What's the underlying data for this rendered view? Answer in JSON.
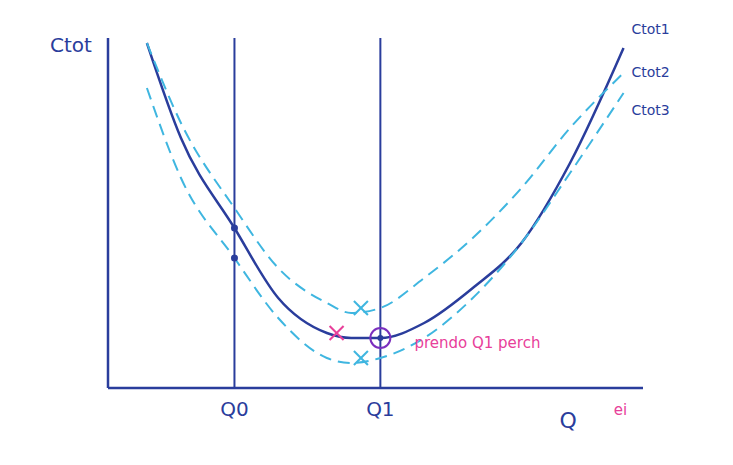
{
  "chart_data": {
    "type": "line",
    "x_label": "Q",
    "y_label": "Ctot",
    "x": [
      0.8,
      1.5,
      2.6,
      3.5,
      4.5,
      5.0,
      5.6,
      6.5,
      7.5,
      8.5,
      9.5,
      10.6
    ],
    "series": [
      {
        "name": "Ctot1",
        "color": "#2a3d9c",
        "line_style": "solid",
        "values": [
          6.9,
          5.0,
          3.2,
          1.8,
          1.1,
          1.0,
          1.0,
          1.3,
          2.0,
          2.9,
          4.5,
          6.8
        ]
      },
      {
        "name": "Ctot2",
        "color": "#3fb6e0",
        "line_style": "dashed",
        "values": [
          6.9,
          5.3,
          3.6,
          2.4,
          1.7,
          1.5,
          1.6,
          2.2,
          3.0,
          4.0,
          5.2,
          6.3
        ]
      },
      {
        "name": "Ctot3",
        "color": "#3fb6e0",
        "line_style": "dashed",
        "values": [
          6.0,
          4.2,
          2.6,
          1.4,
          0.6,
          0.5,
          0.6,
          1.0,
          1.8,
          2.9,
          4.3,
          5.9
        ]
      }
    ],
    "xlim": [
      0,
      11
    ],
    "ylim": [
      0,
      7
    ],
    "xticks": [
      {
        "value": 2.6,
        "label": "Q0"
      },
      {
        "value": 5.6,
        "label": "Q1"
      }
    ],
    "yticks": [],
    "tick_labels": "x",
    "marks": [
      {
        "x": 2.6,
        "y": 3.2,
        "marker": "dot",
        "color": "#2a3d9c"
      },
      {
        "x": 2.6,
        "y": 2.6,
        "marker": "dot",
        "color": "#2a3d9c"
      },
      {
        "x": 4.7,
        "y": 1.1,
        "marker": "x",
        "color": "#e8409a"
      },
      {
        "x": 5.2,
        "y": 1.6,
        "marker": "x",
        "color": "#3fb6e0"
      },
      {
        "x": 5.2,
        "y": 0.6,
        "marker": "x",
        "color": "#3fb6e0"
      },
      {
        "x": 5.6,
        "y": 1.0,
        "marker": "circle",
        "color": "#7b2fbe"
      }
    ],
    "annotations": [
      {
        "text": "prendo Q1 perch",
        "x": 6.3,
        "y": 0.9,
        "color": "#e8409a"
      },
      {
        "text": "ei",
        "x": 10.4,
        "y": -0.45,
        "color": "#e8409a"
      }
    ]
  }
}
